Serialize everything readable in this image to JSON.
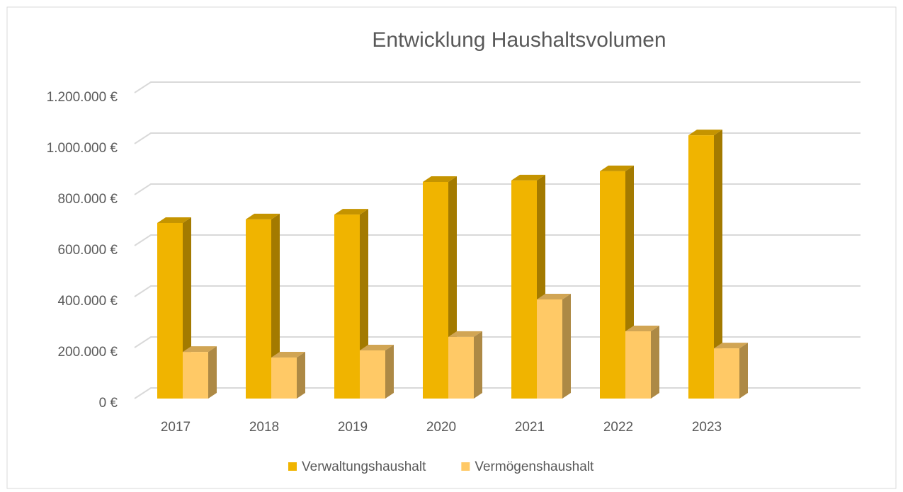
{
  "chart_data": {
    "type": "bar3d",
    "title": "Entwicklung Haushaltsvolumen",
    "categories": [
      "2017",
      "2018",
      "2019",
      "2020",
      "2021",
      "2022",
      "2023"
    ],
    "series": [
      {
        "name": "Verwaltungshaushalt",
        "color": "#f0b400",
        "values": [
          689000,
          703000,
          722000,
          850000,
          856000,
          892000,
          1033000
        ]
      },
      {
        "name": "Vermögenshaushalt",
        "color": "#ffc966",
        "values": [
          183000,
          161000,
          189000,
          242000,
          389000,
          264000,
          197000
        ]
      }
    ],
    "ylim": [
      0,
      1200000
    ],
    "yticks": [
      {
        "value": 0,
        "label": "0 €"
      },
      {
        "value": 200000,
        "label": "200.000 €"
      },
      {
        "value": 400000,
        "label": "400.000 €"
      },
      {
        "value": 600000,
        "label": "600.000 €"
      },
      {
        "value": 800000,
        "label": "800.000 €"
      },
      {
        "value": 1000000,
        "label": "1.000.000 €"
      },
      {
        "value": 1200000,
        "label": "1.200.000 €"
      }
    ],
    "grid": true,
    "legend": "bottom"
  }
}
